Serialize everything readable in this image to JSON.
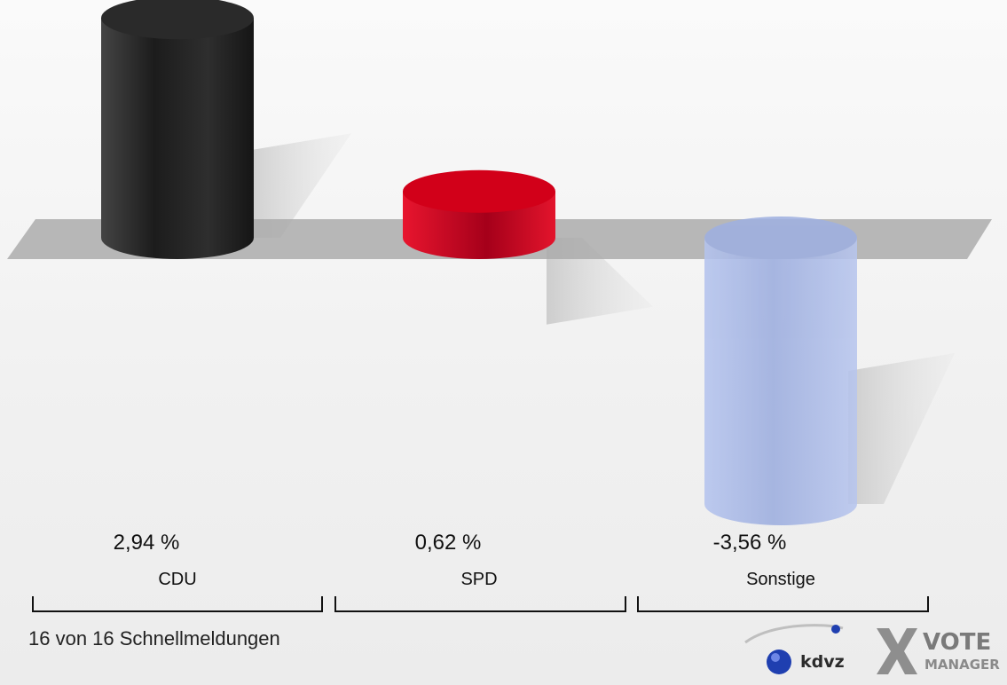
{
  "chart_data": {
    "type": "bar",
    "categories": [
      "CDU",
      "SPD",
      "Sonstige"
    ],
    "values": [
      2.94,
      0.62,
      -3.56
    ],
    "value_labels": [
      "2,94 %",
      "0,62 %",
      "-3,56 %"
    ],
    "colors": [
      "#2a2a2a",
      "#d20019",
      "#9fb0e0"
    ],
    "ylim": [
      -3.56,
      2.94
    ],
    "grid": false,
    "title": "",
    "xlabel": "",
    "ylabel": ""
  },
  "footer": {
    "status": "16 von 16 Schnellmeldungen"
  },
  "logos": {
    "kdvz_text": "kdvz",
    "vote_text": "VOTE",
    "manager_text": "MANAGER"
  }
}
